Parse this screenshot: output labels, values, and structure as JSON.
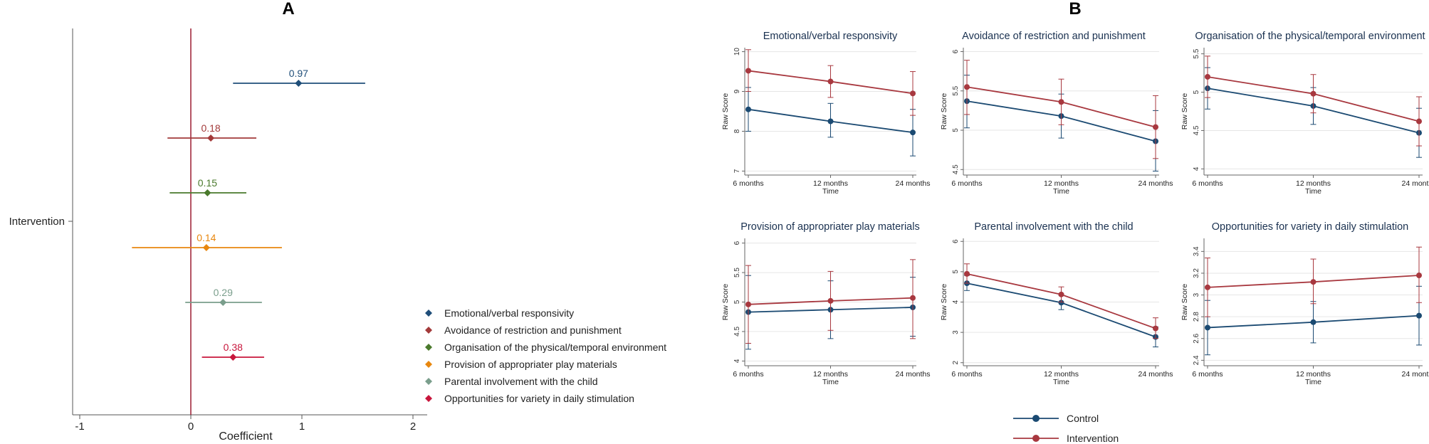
{
  "colors": {
    "emotional": "#1f4e79",
    "avoidance": "#a33a3a",
    "organisation": "#4a7a2c",
    "provision": "#e8870f",
    "parental": "#7a9e8c",
    "opportunities": "#c8163c",
    "control": "#1b4a72",
    "intervention": "#a8383f",
    "zero_line": "#9b1b30",
    "axis": "#555555"
  },
  "chart_data": [
    {
      "id": "A",
      "type": "scatter",
      "panel_label": "A",
      "title": "",
      "xlabel": "Coefficient",
      "ylabel": "",
      "ytick_label": "Intervention",
      "xlim": [
        -1,
        2
      ],
      "xticks": [
        -1,
        0,
        1,
        2
      ],
      "xtick_labels": [
        "-1",
        "0",
        "1",
        "2"
      ],
      "points": [
        {
          "name": "Emotional/verbal responsivity",
          "key": "emotional",
          "coef": 0.97,
          "lo": 0.38,
          "hi": 1.57,
          "label": "0.97"
        },
        {
          "name": "Avoidance of restriction and punishment",
          "key": "avoidance",
          "coef": 0.18,
          "lo": -0.21,
          "hi": 0.59,
          "label": "0.18"
        },
        {
          "name": "Organisation of the physical/temporal environment",
          "key": "organisation",
          "coef": 0.15,
          "lo": -0.19,
          "hi": 0.5,
          "label": "0.15"
        },
        {
          "name": "Provision of appropriater play materials",
          "key": "provision",
          "coef": 0.14,
          "lo": -0.53,
          "hi": 0.82,
          "label": "0.14"
        },
        {
          "name": "Parental involvement with the child",
          "key": "parental",
          "coef": 0.29,
          "lo": -0.05,
          "hi": 0.64,
          "label": "0.29"
        },
        {
          "name": "Opportunities for variety in daily stimulation",
          "key": "opportunities",
          "coef": 0.38,
          "lo": 0.1,
          "hi": 0.66,
          "label": "0.38"
        }
      ],
      "legend": [
        "Emotional/verbal responsivity",
        "Avoidance of restriction and punishment",
        "Organisation of the physical/temporal environment",
        "Provision of appropriater play materials",
        "Parental involvement with the child",
        "Opportunities for variety in daily stimulation"
      ]
    },
    {
      "id": "B",
      "type": "line",
      "panel_label": "B",
      "legend": [
        "Control",
        "Intervention"
      ],
      "x_categories": [
        "6 months",
        "12 months",
        "24 months"
      ],
      "xlabel": "Time",
      "ylabel": "Raw Score",
      "subplots": [
        {
          "title": "Emotional/verbal responsivity",
          "ylim": [
            6.9,
            10.1
          ],
          "yticks": [
            7,
            8,
            9,
            10
          ],
          "ytick_labels": [
            "7",
            "8",
            "9",
            "10"
          ],
          "series": [
            {
              "name": "Control",
              "values": [
                8.55,
                8.25,
                7.97
              ],
              "lo": [
                8.0,
                7.85,
                7.38
              ],
              "hi": [
                9.1,
                8.7,
                8.55
              ]
            },
            {
              "name": "Intervention",
              "values": [
                9.52,
                9.25,
                8.95
              ],
              "lo": [
                9.0,
                8.85,
                8.4
              ],
              "hi": [
                10.05,
                9.65,
                9.5
              ]
            }
          ]
        },
        {
          "title": "Avoidance of restriction and punishment",
          "ylim": [
            4.43,
            6.05
          ],
          "yticks": [
            4.5,
            5,
            5.5,
            6
          ],
          "ytick_labels": [
            "4.5",
            "5",
            "5.5",
            "6"
          ],
          "series": [
            {
              "name": "Control",
              "values": [
                5.37,
                5.18,
                4.86
              ],
              "lo": [
                5.03,
                4.9,
                4.48
              ],
              "hi": [
                5.7,
                5.46,
                5.25
              ]
            },
            {
              "name": "Intervention",
              "values": [
                5.55,
                5.36,
                5.04
              ],
              "lo": [
                5.2,
                5.07,
                4.64
              ],
              "hi": [
                5.89,
                5.65,
                5.44
              ]
            }
          ]
        },
        {
          "title": "Organisation of the physical/temporal environment",
          "ylim": [
            3.92,
            5.58
          ],
          "yticks": [
            4,
            4.5,
            5,
            5.5
          ],
          "ytick_labels": [
            "4",
            "4.5",
            "5",
            "5.5"
          ],
          "series": [
            {
              "name": "Control",
              "values": [
                5.05,
                4.82,
                4.47
              ],
              "lo": [
                4.78,
                4.58,
                4.15
              ],
              "hi": [
                5.32,
                5.06,
                4.79
              ]
            },
            {
              "name": "Intervention",
              "values": [
                5.2,
                4.98,
                4.62
              ],
              "lo": [
                4.93,
                4.73,
                4.3
              ],
              "hi": [
                5.47,
                5.23,
                4.94
              ]
            }
          ]
        },
        {
          "title": "Provision of appropriater play materials",
          "ylim": [
            3.92,
            6.08
          ],
          "yticks": [
            4,
            4.5,
            5,
            5.5,
            6
          ],
          "ytick_labels": [
            "4",
            "4.5",
            "5",
            "5.5",
            "6"
          ],
          "series": [
            {
              "name": "Control",
              "values": [
                4.83,
                4.87,
                4.91
              ],
              "lo": [
                4.2,
                4.38,
                4.42
              ],
              "hi": [
                5.45,
                5.36,
                5.42
              ]
            },
            {
              "name": "Intervention",
              "values": [
                4.96,
                5.02,
                5.07
              ],
              "lo": [
                4.3,
                4.52,
                4.38
              ],
              "hi": [
                5.62,
                5.52,
                5.72
              ]
            }
          ]
        },
        {
          "title": "Parental involvement with the child",
          "ylim": [
            1.9,
            6.1
          ],
          "yticks": [
            2,
            3,
            4,
            5,
            6
          ],
          "ytick_labels": [
            "2",
            "3",
            "4",
            "5",
            "6"
          ],
          "series": [
            {
              "name": "Control",
              "values": [
                4.62,
                3.98,
                2.85
              ],
              "lo": [
                4.38,
                3.75,
                2.52
              ],
              "hi": [
                4.88,
                4.22,
                3.18
              ]
            },
            {
              "name": "Intervention",
              "values": [
                4.93,
                4.25,
                3.13
              ],
              "lo": [
                4.62,
                4.0,
                2.8
              ],
              "hi": [
                5.26,
                4.5,
                3.48
              ]
            }
          ]
        },
        {
          "title": "Opportunities for variety in daily stimulation",
          "ylim": [
            2.35,
            3.52
          ],
          "yticks": [
            2.4,
            2.6,
            2.8,
            3,
            3.2,
            3.4
          ],
          "ytick_labels": [
            "2.4",
            "2.6",
            "2.8",
            "3",
            "3.2",
            "3.4"
          ],
          "series": [
            {
              "name": "Control",
              "values": [
                2.7,
                2.75,
                2.81
              ],
              "lo": [
                2.45,
                2.56,
                2.54
              ],
              "hi": [
                2.95,
                2.94,
                3.08
              ]
            },
            {
              "name": "Intervention",
              "values": [
                3.07,
                3.12,
                3.18
              ],
              "lo": [
                2.8,
                2.92,
                2.93
              ],
              "hi": [
                3.34,
                3.33,
                3.44
              ]
            }
          ]
        }
      ]
    }
  ]
}
